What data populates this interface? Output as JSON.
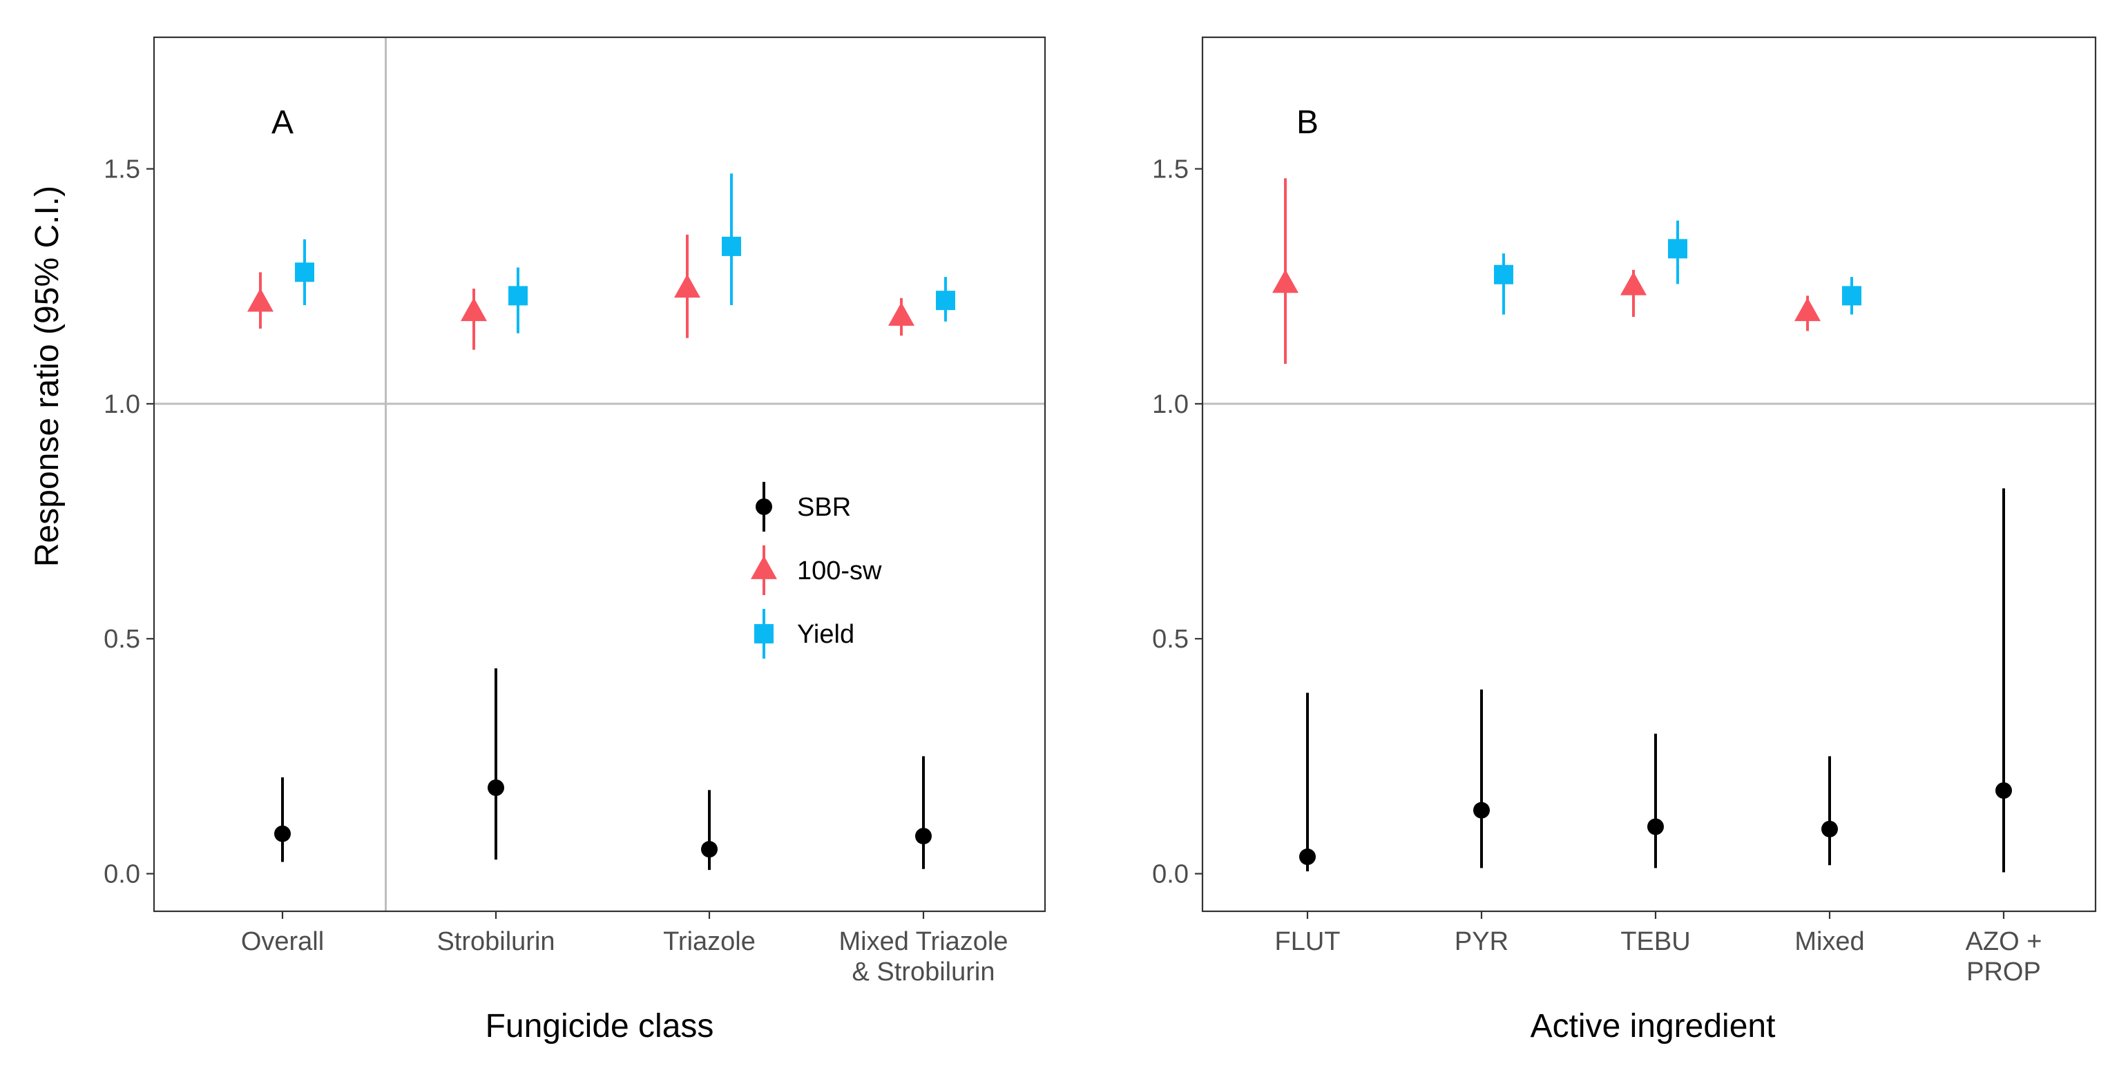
{
  "y_axis_title": "Response ratio (95% C.I.)",
  "legend": [
    {
      "key": "SBR",
      "label": "SBR",
      "color": "#000000",
      "shape": "circle"
    },
    {
      "key": "sw100",
      "label": "100-sw",
      "color": "#F8545F",
      "shape": "triangle"
    },
    {
      "key": "yield",
      "label": "Yield",
      "color": "#0AB9F4",
      "shape": "square"
    }
  ],
  "colors": {
    "panel_border": "#333333",
    "reference": "#BEBEBE",
    "tick_text": "#4d4d4d"
  },
  "chart_data": [
    {
      "type": "scatter",
      "panel": "A",
      "title": "",
      "xlabel": "Fungicide class",
      "ylabel": "Response ratio (95% C.I.)",
      "ylim": [
        -0.08,
        1.78
      ],
      "yticks": [
        "0.0",
        "0.5",
        "1.0",
        "1.5"
      ],
      "reference_lines": {
        "y": 1.0,
        "x_after_category": 0
      },
      "categories": [
        {
          "label": [
            "Overall"
          ]
        },
        {
          "label": [
            "Strobilurin"
          ]
        },
        {
          "label": [
            "Triazole"
          ]
        },
        {
          "label": [
            "Mixed Triazole",
            "& Strobilurin"
          ]
        }
      ],
      "series": [
        {
          "name": "SBR",
          "points": [
            {
              "category": 0,
              "y": 0.085,
              "lo": 0.025,
              "hi": 0.205
            },
            {
              "category": 1,
              "y": 0.183,
              "lo": 0.03,
              "hi": 0.437
            },
            {
              "category": 2,
              "y": 0.052,
              "lo": 0.008,
              "hi": 0.178
            },
            {
              "category": 3,
              "y": 0.08,
              "lo": 0.01,
              "hi": 0.25
            }
          ]
        },
        {
          "name": "100-sw",
          "points": [
            {
              "category": 0,
              "y": 1.215,
              "lo": 1.16,
              "hi": 1.28
            },
            {
              "category": 1,
              "y": 1.195,
              "lo": 1.115,
              "hi": 1.245
            },
            {
              "category": 2,
              "y": 1.245,
              "lo": 1.14,
              "hi": 1.36
            },
            {
              "category": 3,
              "y": 1.185,
              "lo": 1.145,
              "hi": 1.225
            }
          ]
        },
        {
          "name": "Yield",
          "points": [
            {
              "category": 0,
              "y": 1.28,
              "lo": 1.21,
              "hi": 1.35
            },
            {
              "category": 1,
              "y": 1.23,
              "lo": 1.15,
              "hi": 1.29
            },
            {
              "category": 2,
              "y": 1.335,
              "lo": 1.21,
              "hi": 1.49
            },
            {
              "category": 3,
              "y": 1.22,
              "lo": 1.175,
              "hi": 1.27
            }
          ]
        }
      ]
    },
    {
      "type": "scatter",
      "panel": "B",
      "title": "",
      "xlabel": "Active ingredient",
      "ylabel": "",
      "ylim": [
        -0.08,
        1.78
      ],
      "yticks": [
        "0.0",
        "0.5",
        "1.0",
        "1.5"
      ],
      "reference_lines": {
        "y": 1.0,
        "x_after_category": null
      },
      "categories": [
        {
          "label": [
            "FLUT"
          ]
        },
        {
          "label": [
            "PYR"
          ]
        },
        {
          "label": [
            "TEBU"
          ]
        },
        {
          "label": [
            "Mixed"
          ]
        },
        {
          "label": [
            "AZO +",
            "PROP"
          ]
        }
      ],
      "series": [
        {
          "name": "SBR",
          "points": [
            {
              "category": 0,
              "y": 0.036,
              "lo": 0.005,
              "hi": 0.385
            },
            {
              "category": 1,
              "y": 0.135,
              "lo": 0.012,
              "hi": 0.392
            },
            {
              "category": 2,
              "y": 0.1,
              "lo": 0.012,
              "hi": 0.298
            },
            {
              "category": 3,
              "y": 0.095,
              "lo": 0.018,
              "hi": 0.25
            },
            {
              "category": 4,
              "y": 0.177,
              "lo": 0.003,
              "hi": 0.82
            }
          ]
        },
        {
          "name": "100-sw",
          "points": [
            {
              "category": 0,
              "y": 1.255,
              "lo": 1.085,
              "hi": 1.48
            },
            {
              "category": 2,
              "y": 1.25,
              "lo": 1.185,
              "hi": 1.285
            },
            {
              "category": 3,
              "y": 1.195,
              "lo": 1.155,
              "hi": 1.23
            }
          ]
        },
        {
          "name": "Yield",
          "points": [
            {
              "category": 1,
              "y": 1.275,
              "lo": 1.19,
              "hi": 1.32
            },
            {
              "category": 2,
              "y": 1.33,
              "lo": 1.255,
              "hi": 1.39
            },
            {
              "category": 3,
              "y": 1.23,
              "lo": 1.19,
              "hi": 1.27
            }
          ]
        }
      ]
    }
  ]
}
